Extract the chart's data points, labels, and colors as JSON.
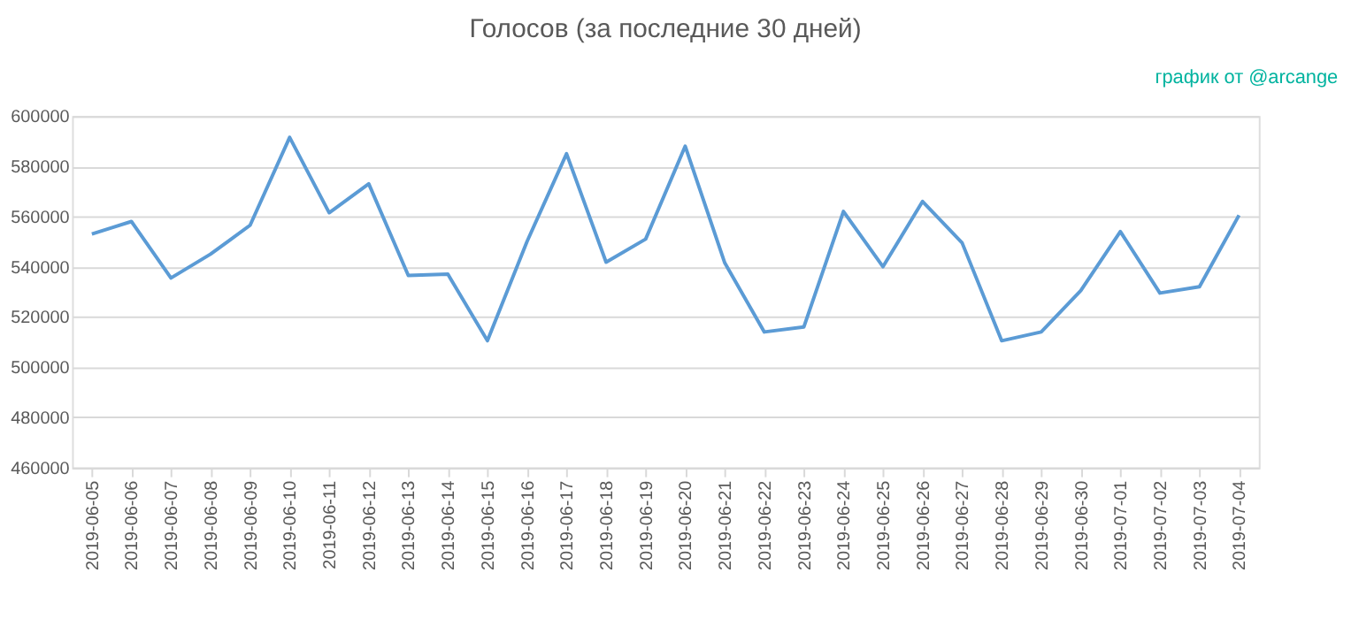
{
  "chart_data": {
    "type": "line",
    "title": "Голосов (за последние 30 дней)",
    "annotations": [
      "график от @arcange"
    ],
    "categories": [
      "2019-06-05",
      "2019-06-06",
      "2019-06-07",
      "2019-06-08",
      "2019-06-09",
      "2019-06-10",
      "2019-06-11",
      "2019-06-12",
      "2019-06-13",
      "2019-06-14",
      "2019-06-15",
      "2019-06-16",
      "2019-06-17",
      "2019-06-18",
      "2019-06-19",
      "2019-06-20",
      "2019-06-21",
      "2019-06-22",
      "2019-06-23",
      "2019-06-24",
      "2019-06-25",
      "2019-06-26",
      "2019-06-27",
      "2019-06-28",
      "2019-06-29",
      "2019-06-30",
      "2019-07-01",
      "2019-07-02",
      "2019-07-03",
      "2019-07-04"
    ],
    "series": [
      {
        "color": "#5b9bd5",
        "values": [
          553000,
          558000,
          535500,
          545000,
          556500,
          591500,
          561500,
          573000,
          536500,
          537000,
          510500,
          550000,
          585000,
          541800,
          551000,
          588000,
          541500,
          514000,
          516000,
          562000,
          540000,
          566000,
          549500,
          510500,
          514000,
          530500,
          554000,
          529500,
          532000,
          560500
        ]
      }
    ],
    "ylim": [
      460000,
      600000
    ],
    "yticks": [
      460000,
      480000,
      500000,
      520000,
      540000,
      560000,
      580000,
      600000
    ],
    "grid": "y",
    "line_style": "solid"
  }
}
